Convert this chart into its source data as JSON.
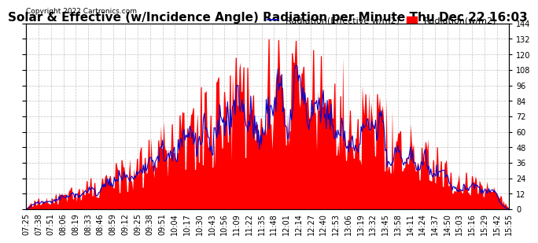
{
  "title": "Solar & Effective (w/Incidence Angle) Radiation per Minute Thu Dec 22 16:03",
  "copyright": "Copyright 2022 Cartronics.com",
  "legend_effective": "Radiation(Effective w/m2)",
  "legend_radiation": "Radiation(w/m2)",
  "ylim": [
    0,
    144
  ],
  "yticks": [
    0.0,
    12.0,
    24.0,
    36.0,
    48.0,
    60.0,
    72.0,
    84.0,
    96.0,
    108.0,
    120.0,
    132.0,
    144.0
  ],
  "color_fill": "#FF0000",
  "color_line": "#0000CC",
  "background_color": "#FFFFFF",
  "grid_color": "#BBBBBB",
  "title_fontsize": 11,
  "tick_fontsize": 7,
  "legend_fontsize": 8,
  "x_labels": [
    "07:25",
    "07:38",
    "07:51",
    "08:06",
    "08:19",
    "08:33",
    "08:46",
    "08:59",
    "09:12",
    "09:25",
    "09:38",
    "09:51",
    "10:04",
    "10:17",
    "10:30",
    "10:43",
    "10:56",
    "11:09",
    "11:22",
    "11:35",
    "11:48",
    "12:01",
    "12:14",
    "12:27",
    "12:40",
    "12:53",
    "13:06",
    "13:19",
    "13:32",
    "13:45",
    "13:58",
    "14:11",
    "14:24",
    "14:37",
    "14:50",
    "15:03",
    "15:16",
    "15:29",
    "15:42",
    "15:55"
  ]
}
